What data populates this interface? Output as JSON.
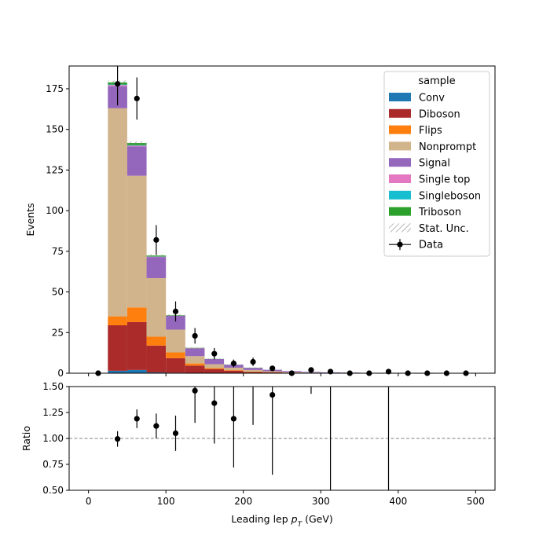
{
  "chart_data": {
    "type": "bar",
    "stacked": true,
    "xlabel": "Leading lep $p_T$ (GeV)",
    "xlabel_main": "Leading lep ",
    "xlabel_sym": "p",
    "xlabel_sub": "T",
    "xlabel_unit": " (GeV)",
    "ylabel": "Events",
    "ratio_ylabel": "Ratio",
    "xlim": [
      -25,
      525
    ],
    "ylim": [
      0,
      189
    ],
    "ratio_ylim": [
      0.5,
      1.5
    ],
    "x_ticks": [
      0,
      100,
      200,
      300,
      400,
      500
    ],
    "y_ticks": [
      0,
      25,
      50,
      75,
      100,
      125,
      150,
      175
    ],
    "ratio_y_ticks": [
      0.5,
      0.75,
      1.0,
      1.25,
      1.5
    ],
    "ratio_y_tick_labels": [
      "0.50",
      "0.75",
      "1.00",
      "1.25",
      "1.50"
    ],
    "ratio_reference": 1.0,
    "bin_edges": [
      0,
      25,
      50,
      75,
      100,
      125,
      150,
      175,
      200,
      225,
      250,
      275,
      300,
      325,
      350,
      375,
      400,
      425,
      450,
      475,
      500
    ],
    "legend_title": "sample",
    "legend_position": "upper-right",
    "series": [
      {
        "name": "Conv",
        "color": "#1f77b4",
        "values": [
          0,
          1.5,
          2.0,
          0.5,
          0.3,
          0.2,
          0.1,
          0.1,
          0,
          0,
          0,
          0,
          0,
          0,
          0,
          0,
          0,
          0,
          0,
          0
        ]
      },
      {
        "name": "Diboson",
        "color": "#ab2a2a",
        "values": [
          0,
          28,
          29.5,
          16.5,
          9,
          4.5,
          2.5,
          1.5,
          0.8,
          0.6,
          0.3,
          0.2,
          0.1,
          0.1,
          0.1,
          0.1,
          0.1,
          0,
          0,
          0
        ]
      },
      {
        "name": "Flips",
        "color": "#ff7f0e",
        "values": [
          0,
          5.5,
          9,
          5.5,
          3.5,
          1.3,
          0.6,
          0.3,
          0.2,
          0.1,
          0.1,
          0,
          0,
          0,
          0,
          0,
          0,
          0,
          0,
          0
        ]
      },
      {
        "name": "Nonprompt",
        "color": "#d2b48c",
        "values": [
          0,
          128,
          81,
          36,
          14,
          4.5,
          2.3,
          1.5,
          1.0,
          0.5,
          0.3,
          0.2,
          0.1,
          0.1,
          0,
          0,
          0,
          0,
          0,
          0
        ]
      },
      {
        "name": "Signal",
        "color": "#9467bd",
        "values": [
          0,
          13.5,
          18,
          13,
          8.5,
          4.8,
          3.2,
          1.8,
          1.3,
          0.9,
          0.6,
          0.4,
          0.3,
          0.2,
          0.1,
          0.1,
          0.1,
          0.1,
          0,
          0
        ]
      },
      {
        "name": "Single top",
        "color": "#e377c2",
        "values": [
          0,
          0.8,
          0.5,
          0.2,
          0.1,
          0.1,
          0,
          0,
          0,
          0,
          0,
          0,
          0,
          0,
          0,
          0,
          0,
          0,
          0,
          0
        ]
      },
      {
        "name": "Singleboson",
        "color": "#17becf",
        "values": [
          0,
          0.3,
          0.3,
          0.1,
          0,
          0,
          0,
          0,
          0,
          0,
          0,
          0,
          0,
          0,
          0,
          0,
          0,
          0,
          0,
          0
        ]
      },
      {
        "name": "Triboson",
        "color": "#2ca02c",
        "values": [
          0,
          1.3,
          1.3,
          0.6,
          0.3,
          0.2,
          0.1,
          0.1,
          0.1,
          0,
          0,
          0,
          0,
          0,
          0,
          0,
          0,
          0,
          0,
          0
        ]
      }
    ],
    "stat_unc_label": "Stat. Unc.",
    "stat_unc": [
      0,
      1.2,
      1.0,
      0.7,
      0.5,
      0.3,
      0.3,
      0.2,
      0.2,
      0.1,
      0.1,
      0.1,
      0.1,
      0.1,
      0.1,
      0.1,
      0.1,
      0.1,
      0.1,
      0.1
    ],
    "data_label": "Data",
    "data": {
      "x": [
        12.5,
        37.5,
        62.5,
        87.5,
        112.5,
        137.5,
        162.5,
        187.5,
        212.5,
        237.5,
        262.5,
        287.5,
        312.5,
        337.5,
        362.5,
        387.5,
        412.5,
        437.5,
        462.5,
        487.5
      ],
      "y": [
        0,
        178,
        169,
        82,
        38,
        23,
        12,
        6,
        7,
        3,
        0,
        2,
        1,
        0,
        0,
        1,
        0,
        0,
        0,
        0
      ],
      "err_low": [
        0,
        13.3,
        13.0,
        9.1,
        6.2,
        4.8,
        3.5,
        2.4,
        2.6,
        1.7,
        0,
        1.4,
        1.0,
        0,
        0,
        1.0,
        0,
        0,
        0,
        0
      ],
      "err_high": [
        0,
        13.3,
        13.0,
        9.1,
        6.2,
        4.8,
        3.5,
        2.4,
        2.6,
        1.7,
        0,
        1.4,
        1.0,
        0,
        0,
        1.0,
        0,
        0,
        0,
        0
      ]
    },
    "ratio": {
      "x": [
        37.5,
        62.5,
        87.5,
        112.5,
        137.5,
        162.5,
        187.5,
        212.5,
        237.5,
        287.5,
        312.5,
        387.5
      ],
      "y": [
        0.995,
        1.19,
        1.12,
        1.05,
        1.46,
        1.34,
        1.19,
        null,
        1.42,
        null,
        null,
        null
      ],
      "err_low": [
        0.075,
        0.09,
        0.12,
        0.17,
        0.31,
        0.39,
        0.47,
        null,
        0.77,
        null,
        null,
        null
      ],
      "err_high": [
        0.075,
        0.09,
        0.12,
        0.17,
        0.31,
        0.39,
        0.47,
        null,
        0.77,
        null,
        null,
        null
      ],
      "err_bar_range": [
        null,
        null,
        null,
        null,
        null,
        null,
        null,
        [
          1.13,
          1.5
        ],
        null,
        [
          1.43,
          1.5
        ],
        [
          0.5,
          1.5
        ],
        [
          0.5,
          1.5
        ]
      ]
    }
  }
}
